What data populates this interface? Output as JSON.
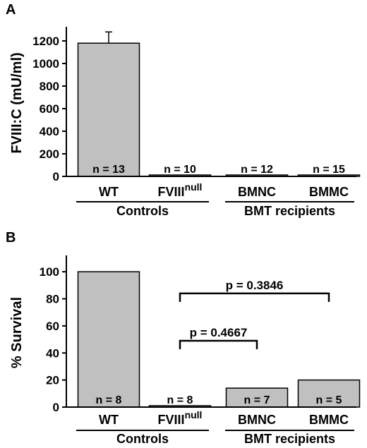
{
  "chart_data": [
    {
      "panel": "A",
      "type": "bar",
      "ylabel": "FVIII:C (mU/ml)",
      "ylim": [
        0,
        1300
      ],
      "yticks": [
        0,
        200,
        400,
        600,
        800,
        1000,
        1200
      ],
      "categories": [
        "WT",
        "FVIII",
        "BMNC",
        "BMMC"
      ],
      "category_superscripts": [
        "",
        "null",
        "",
        ""
      ],
      "values": [
        1180,
        0,
        0,
        0
      ],
      "errors": [
        100,
        0,
        0,
        0
      ],
      "n_labels": [
        "n = 13",
        "n = 10",
        "n = 12",
        "n = 15"
      ],
      "bar_color": "#c0c0c0",
      "groups": [
        {
          "label": "Controls",
          "categories": [
            0,
            1
          ]
        },
        {
          "label": "BMT recipients",
          "categories": [
            2,
            3
          ]
        }
      ]
    },
    {
      "panel": "B",
      "type": "bar",
      "ylabel": "% Survival",
      "ylim": [
        0,
        110
      ],
      "yticks": [
        0,
        20,
        40,
        60,
        80,
        100
      ],
      "categories": [
        "WT",
        "FVIII",
        "BMNC",
        "BMMC"
      ],
      "category_superscripts": [
        "",
        "null",
        "",
        ""
      ],
      "values": [
        100,
        0.5,
        14,
        20
      ],
      "n_labels": [
        "n = 8",
        "n = 8",
        "n = 7",
        "n = 5"
      ],
      "bar_color": "#c0c0c0",
      "groups": [
        {
          "label": "Controls",
          "categories": [
            0,
            1
          ]
        },
        {
          "label": "BMT recipients",
          "categories": [
            2,
            3
          ]
        }
      ],
      "comparisons": [
        {
          "from": 1,
          "to": 3,
          "y": 84,
          "label": "p = 0.3846"
        },
        {
          "from": 1,
          "to": 2,
          "y": 49,
          "label": "p = 0.4667"
        }
      ]
    }
  ]
}
